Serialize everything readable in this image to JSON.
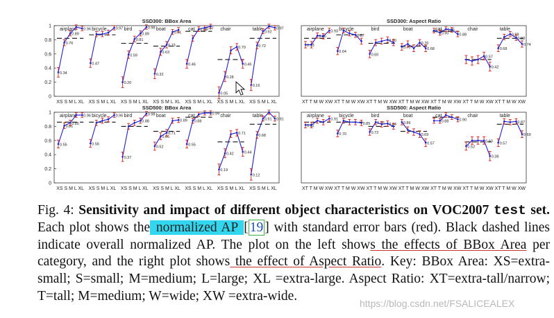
{
  "figure": {
    "colors": {
      "line": "#1f1fd6",
      "error_bar": "#d62020",
      "baseline": "#111111",
      "frame": "#333333"
    }
  },
  "chart_data": [
    {
      "type": "line",
      "title": "SSD300: BBox Area",
      "y_ticks": [
        "0",
        "0.2",
        "0.4",
        "0.6",
        "0.8",
        "1"
      ],
      "ylim": [
        0,
        1
      ],
      "x_tick_labels": [
        "XS",
        "S",
        "M",
        "L",
        "XL"
      ],
      "series": [
        {
          "name": "airplane",
          "values": [
            0.34,
            0.76,
            0.89,
            0.98,
            0.96
          ],
          "baseline": 0.82,
          "labels": [
            "0.34",
            "0.76",
            "0.89",
            "",
            "0.96"
          ]
        },
        {
          "name": "bicycle",
          "values": [
            0.47,
            0.88,
            0.88,
            0.9,
            0.97
          ],
          "baseline": 0.87,
          "labels": [
            "0.47",
            "",
            "",
            "",
            "0.97"
          ]
        },
        {
          "name": "bird",
          "values": [
            0.2,
            0.59,
            0.81,
            0.89,
            0.98
          ],
          "baseline": 0.75,
          "labels": [
            "0.20",
            "0.59",
            "0.81",
            "0.89",
            "0.98"
          ]
        },
        {
          "name": "boat",
          "values": [
            0.32,
            0.63,
            0.73,
            0.91,
            0.94
          ],
          "baseline": 0.71,
          "labels": [
            "0.32",
            "0.63",
            "0.73",
            "0.91",
            ""
          ]
        },
        {
          "name": "cat",
          "values": [
            0.46,
            0.82,
            0.95,
            0.97,
            0.99
          ],
          "baseline": 0.92,
          "labels": [
            "0.46",
            "",
            "0.95",
            "0.97",
            ""
          ]
        },
        {
          "name": "chair",
          "values": [
            0.05,
            0.28,
            0.65,
            0.7,
            0.46
          ],
          "baseline": 0.52,
          "labels": [
            "0.05",
            "0.28",
            "",
            "0.70",
            "0.46"
          ]
        },
        {
          "name": "table",
          "values": [
            0.16,
            0.72,
            0.92,
            0.99,
            0.97
          ],
          "baseline": 0.82,
          "labels": [
            "0.16",
            "0.72",
            "0.92",
            "",
            "0.97"
          ]
        }
      ]
    },
    {
      "type": "line",
      "title": "SSD300: Aspect Ratio",
      "ylim": [
        0,
        1
      ],
      "x_tick_labels": [
        "XT",
        "T",
        "M",
        "W",
        "XW"
      ],
      "series": [
        {
          "name": "airplane",
          "values": [
            0.73,
            0.73,
            0.86,
            0.85,
            0.93
          ],
          "baseline": 0.82,
          "labels": [
            "0.73",
            "",
            "0.86",
            "",
            "0.93"
          ]
        },
        {
          "name": "bicycle",
          "values": [
            0.64,
            0.93,
            0.89,
            0.87,
            0.78
          ],
          "baseline": 0.87,
          "labels": [
            "0.64",
            "",
            "",
            "0.87",
            ""
          ]
        },
        {
          "name": "bird",
          "values": [
            0.6,
            0.76,
            0.78,
            0.8,
            0.76
          ],
          "baseline": 0.75,
          "labels": [
            "0.60",
            "",
            "",
            "0.80",
            ""
          ]
        },
        {
          "name": "boat",
          "values": [
            0.7,
            0.74,
            0.68,
            0.76,
            0.68
          ],
          "baseline": 0.71,
          "labels": [
            "0.70",
            "",
            "",
            "0.76",
            "0.68"
          ]
        },
        {
          "name": "cat",
          "values": [
            0.93,
            0.9,
            0.95,
            0.94,
            0.88
          ],
          "baseline": 0.92,
          "labels": [
            "0.93",
            "0.90",
            "0.95",
            "",
            "0.88"
          ]
        },
        {
          "name": "chair",
          "values": [
            0.52,
            0.5,
            0.52,
            0.57,
            0.42
          ],
          "baseline": 0.52,
          "labels": [
            "",
            "",
            "",
            "0.57",
            "0.42"
          ]
        },
        {
          "name": "table",
          "values": [
            0.68,
            0.84,
            0.88,
            0.83,
            0.74
          ],
          "baseline": 0.82,
          "labels": [
            "0.68",
            "",
            "0.88",
            "0.83",
            "0.74"
          ]
        }
      ]
    },
    {
      "type": "line",
      "title": "SSD500: BBox Area",
      "y_ticks": [
        "0",
        "0.2",
        "0.4",
        "0.6",
        "0.8",
        "1"
      ],
      "ylim": [
        0,
        1
      ],
      "x_tick_labels": [
        "XS",
        "S",
        "M",
        "L",
        "XL"
      ],
      "series": [
        {
          "name": "airplane",
          "values": [
            0.55,
            0.81,
            0.85,
            0.96,
            0.96
          ],
          "baseline": 0.86,
          "labels": [
            "0.55",
            "0.81",
            "0.85",
            "",
            "0.96"
          ]
        },
        {
          "name": "bicycle",
          "values": [
            0.56,
            0.85,
            0.88,
            0.9,
            0.96
          ],
          "baseline": 0.86,
          "labels": [
            "0.56",
            "",
            "",
            "",
            "0.96"
          ]
        },
        {
          "name": "bird",
          "values": [
            0.37,
            0.8,
            0.85,
            0.88,
            0.98
          ],
          "baseline": 0.8,
          "labels": [
            "0.37",
            "",
            "",
            "0.88",
            "0.98"
          ]
        },
        {
          "name": "boat",
          "values": [
            0.52,
            0.66,
            0.71,
            0.88,
            0.89
          ],
          "baseline": 0.73,
          "labels": [
            "0.52",
            "0.66",
            "0.71",
            "",
            "0.89"
          ]
        },
        {
          "name": "cat",
          "values": [
            0.55,
            0.88,
            0.97,
            0.99,
            0.99
          ],
          "baseline": 0.93,
          "labels": [
            "0.55",
            "0.88",
            "",
            "",
            "0.99"
          ]
        },
        {
          "name": "chair",
          "values": [
            0.19,
            0.42,
            0.69,
            0.71,
            0.44
          ],
          "baseline": 0.58,
          "labels": [
            "0.19",
            "0.42",
            "",
            "0.71",
            "0.44"
          ]
        },
        {
          "name": "table",
          "values": [
            0.12,
            0.68,
            0.91,
            1.0,
            0.91
          ],
          "baseline": 0.83,
          "labels": [
            "0.12",
            "0.68",
            "0.91",
            "",
            "0.91"
          ]
        }
      ]
    },
    {
      "type": "line",
      "title": "SSD500: Aspect Ratio",
      "ylim": [
        0,
        1
      ],
      "x_tick_labels": [
        "XT",
        "T",
        "M",
        "W",
        "XW"
      ],
      "series": [
        {
          "name": "airplane",
          "values": [
            0.82,
            0.82,
            0.88,
            0.86,
            0.91
          ],
          "baseline": 0.86,
          "labels": [
            "0.82",
            "",
            "",
            "",
            "0.91"
          ]
        },
        {
          "name": "bicycle",
          "values": [
            0.7,
            0.88,
            0.86,
            0.86,
            0.85
          ],
          "baseline": 0.86,
          "labels": [
            "0.70",
            "",
            "",
            "",
            "0.85"
          ]
        },
        {
          "name": "bird",
          "values": [
            0.72,
            0.86,
            0.83,
            0.84,
            0.8
          ],
          "baseline": 0.8,
          "labels": [
            "0.72",
            "0.86",
            "",
            "0.84",
            ""
          ]
        },
        {
          "name": "boat",
          "values": [
            0.86,
            0.75,
            0.72,
            0.69,
            0.57
          ],
          "baseline": 0.73,
          "labels": [
            "0.86",
            "",
            "",
            "0.69",
            "0.57"
          ]
        },
        {
          "name": "cat",
          "values": [
            0.88,
            0.88,
            0.96,
            0.93,
            0.9
          ],
          "baseline": 0.93,
          "labels": [
            "",
            "0.88",
            "",
            "",
            "0.90"
          ]
        },
        {
          "name": "chair",
          "values": [
            0.52,
            0.6,
            0.6,
            0.6,
            0.38
          ],
          "baseline": 0.58,
          "labels": [
            "0.52",
            "",
            "",
            "0.60",
            "0.38"
          ]
        },
        {
          "name": "table",
          "values": [
            0.57,
            0.87,
            0.86,
            0.87,
            0.69
          ],
          "baseline": 0.83,
          "labels": [
            "0.57",
            "",
            "",
            "0.87",
            "0.69"
          ]
        }
      ]
    }
  ],
  "caption": {
    "fig_label": "Fig. 4: ",
    "bold_title": "Sensitivity and impact of different object characteristics on VOC2007 ",
    "bold_mono": "test",
    "bold_end": " set.",
    "t1": " Each plot shows the",
    "highlight": " normalized AP ",
    "t2": "[",
    "cite": "19",
    "t3": "] with standard error bars (red). Black dashed lines indicate overall normalized AP. The plot on the left show",
    "u1": "s the effects of BBox Area",
    "t4": " per category, and the right plot shows",
    "u2": " the effect of Aspect Ratio",
    "t5": ". Key: BBox Area: XS=extra-small; S=small; M=medium; L=large; XL =extra-large. Aspect Ratio: XT=extra-tall/narrow; T=tall; M=medium; W=wide; XW =extra-wide."
  },
  "watermark": "https://blog.csdn.net/FSALICEALEX"
}
